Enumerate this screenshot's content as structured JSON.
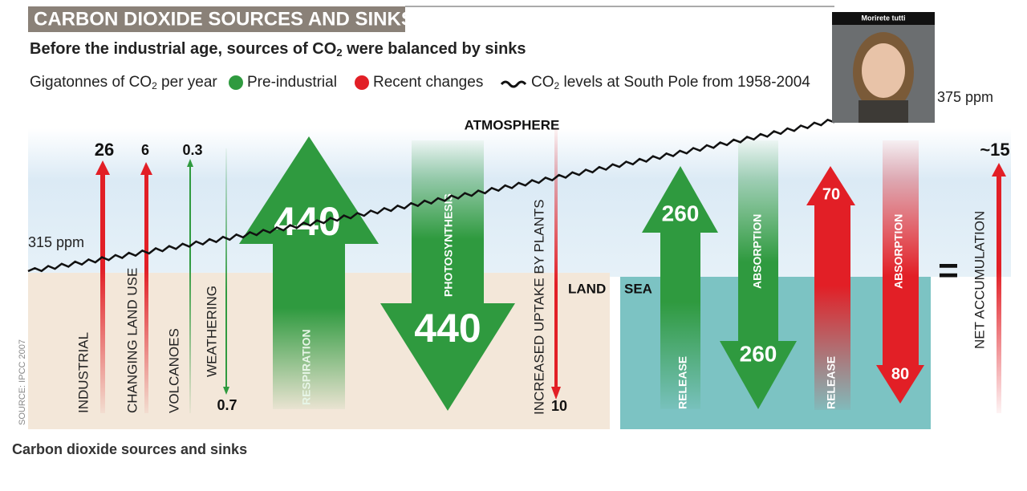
{
  "header": {
    "title": "CARBON DIOXIDE SOURCES AND SINKS",
    "subtitle": [
      "Before the industrial age, sources of CO",
      "2",
      " were balanced by sinks"
    ]
  },
  "legend": {
    "units": [
      "Gigatonnes of CO",
      "2",
      " per year"
    ],
    "pre_industrial": "Pre-industrial",
    "recent": "Recent changes",
    "co2_line": [
      "CO",
      "2",
      " levels at South Pole from 1958-2004"
    ]
  },
  "ppm_start": "315 ppm",
  "ppm_end": "375 ppm",
  "zones": {
    "atmosphere": "ATMOSPHERE",
    "land": "LAND",
    "sea": "SEA"
  },
  "flows": [
    {
      "label": "INDUSTRIAL",
      "value": 26
    },
    {
      "label": "CHANGING LAND USE",
      "value": 6
    },
    {
      "label": "VOLCANOES",
      "value": 0.3
    },
    {
      "label": "WEATHERING",
      "value": 0.7
    },
    {
      "label": "RESPIRATION",
      "value": 440
    },
    {
      "label": "PHOTOSYNTHESIS",
      "value": 440
    },
    {
      "label": "INCREASED UPTAKE BY PLANTS",
      "value": 10
    },
    {
      "label": "RELEASE",
      "value": 260
    },
    {
      "label": "ABSORPTION",
      "value": 260
    },
    {
      "label": "RELEASE",
      "value": 70
    },
    {
      "label": "ABSORPTION",
      "value": 80
    },
    {
      "label": "NET ACCUMULATION",
      "value": "~15"
    }
  ],
  "equals": "=",
  "source": "SOURCE: IPCC 2007",
  "photo_caption": "Morirete tutti",
  "caption": "Carbon dioxide sources and sinks"
}
